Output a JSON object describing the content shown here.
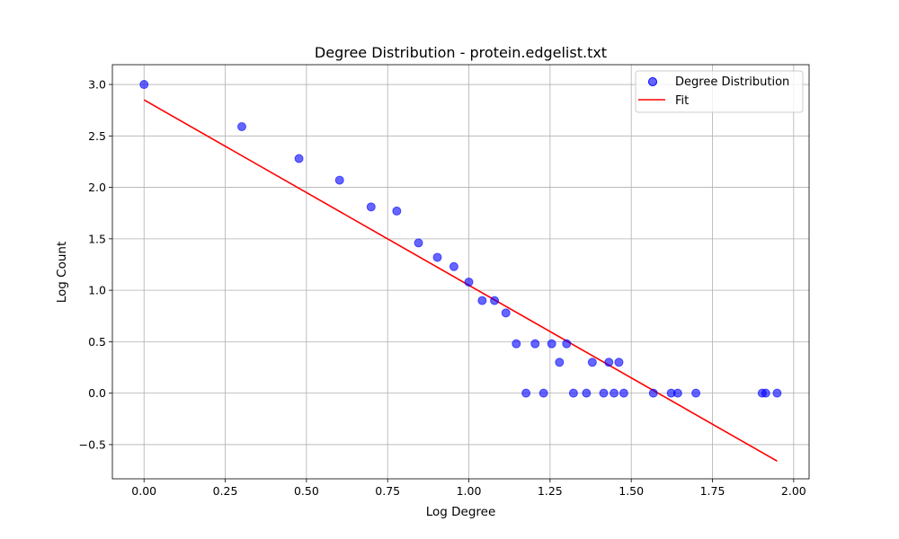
{
  "chart_data": {
    "type": "scatter",
    "title": "Degree Distribution - protein.edgelist.txt",
    "xlabel": "Log Degree",
    "ylabel": "Log Count",
    "xlim": [
      -0.0975,
      2.0475
    ],
    "ylim": [
      -0.8325,
      3.1925
    ],
    "xticks": [
      0.0,
      0.25,
      0.5,
      0.75,
      1.0,
      1.25,
      1.5,
      1.75,
      2.0
    ],
    "xtick_labels": [
      "0.00",
      "0.25",
      "0.50",
      "0.75",
      "1.00",
      "1.25",
      "1.50",
      "1.75",
      "2.00"
    ],
    "yticks": [
      -0.5,
      0.0,
      0.5,
      1.0,
      1.5,
      2.0,
      2.5,
      3.0
    ],
    "ytick_labels": [
      "−0.5",
      "0.0",
      "0.5",
      "1.0",
      "1.5",
      "2.0",
      "2.5",
      "3.0"
    ],
    "grid": true,
    "legend_position": "top-right",
    "series": [
      {
        "name": "Degree Distribution",
        "type": "scatter",
        "color": "#0000ff",
        "points": [
          [
            0.0,
            3.0
          ],
          [
            0.301,
            2.59
          ],
          [
            0.477,
            2.28
          ],
          [
            0.602,
            2.07
          ],
          [
            0.699,
            1.81
          ],
          [
            0.778,
            1.77
          ],
          [
            0.845,
            1.46
          ],
          [
            0.903,
            1.32
          ],
          [
            0.954,
            1.23
          ],
          [
            1.0,
            1.08
          ],
          [
            1.041,
            0.9
          ],
          [
            1.079,
            0.9
          ],
          [
            1.114,
            0.78
          ],
          [
            1.146,
            0.48
          ],
          [
            1.176,
            0.0
          ],
          [
            1.204,
            0.48
          ],
          [
            1.23,
            0.0
          ],
          [
            1.255,
            0.48
          ],
          [
            1.279,
            0.3
          ],
          [
            1.301,
            0.48
          ],
          [
            1.322,
            0.0
          ],
          [
            1.362,
            0.0
          ],
          [
            1.38,
            0.3
          ],
          [
            1.415,
            0.0
          ],
          [
            1.431,
            0.3
          ],
          [
            1.447,
            0.0
          ],
          [
            1.462,
            0.3
          ],
          [
            1.477,
            0.0
          ],
          [
            1.568,
            0.0
          ],
          [
            1.623,
            0.0
          ],
          [
            1.643,
            0.0
          ],
          [
            1.699,
            0.0
          ],
          [
            1.903,
            0.0
          ],
          [
            1.914,
            0.0
          ],
          [
            1.949,
            0.0
          ]
        ]
      },
      {
        "name": "Fit",
        "type": "line",
        "color": "#ff0000",
        "points": [
          [
            0.0,
            2.85
          ],
          [
            1.949,
            -0.66
          ]
        ]
      }
    ]
  }
}
